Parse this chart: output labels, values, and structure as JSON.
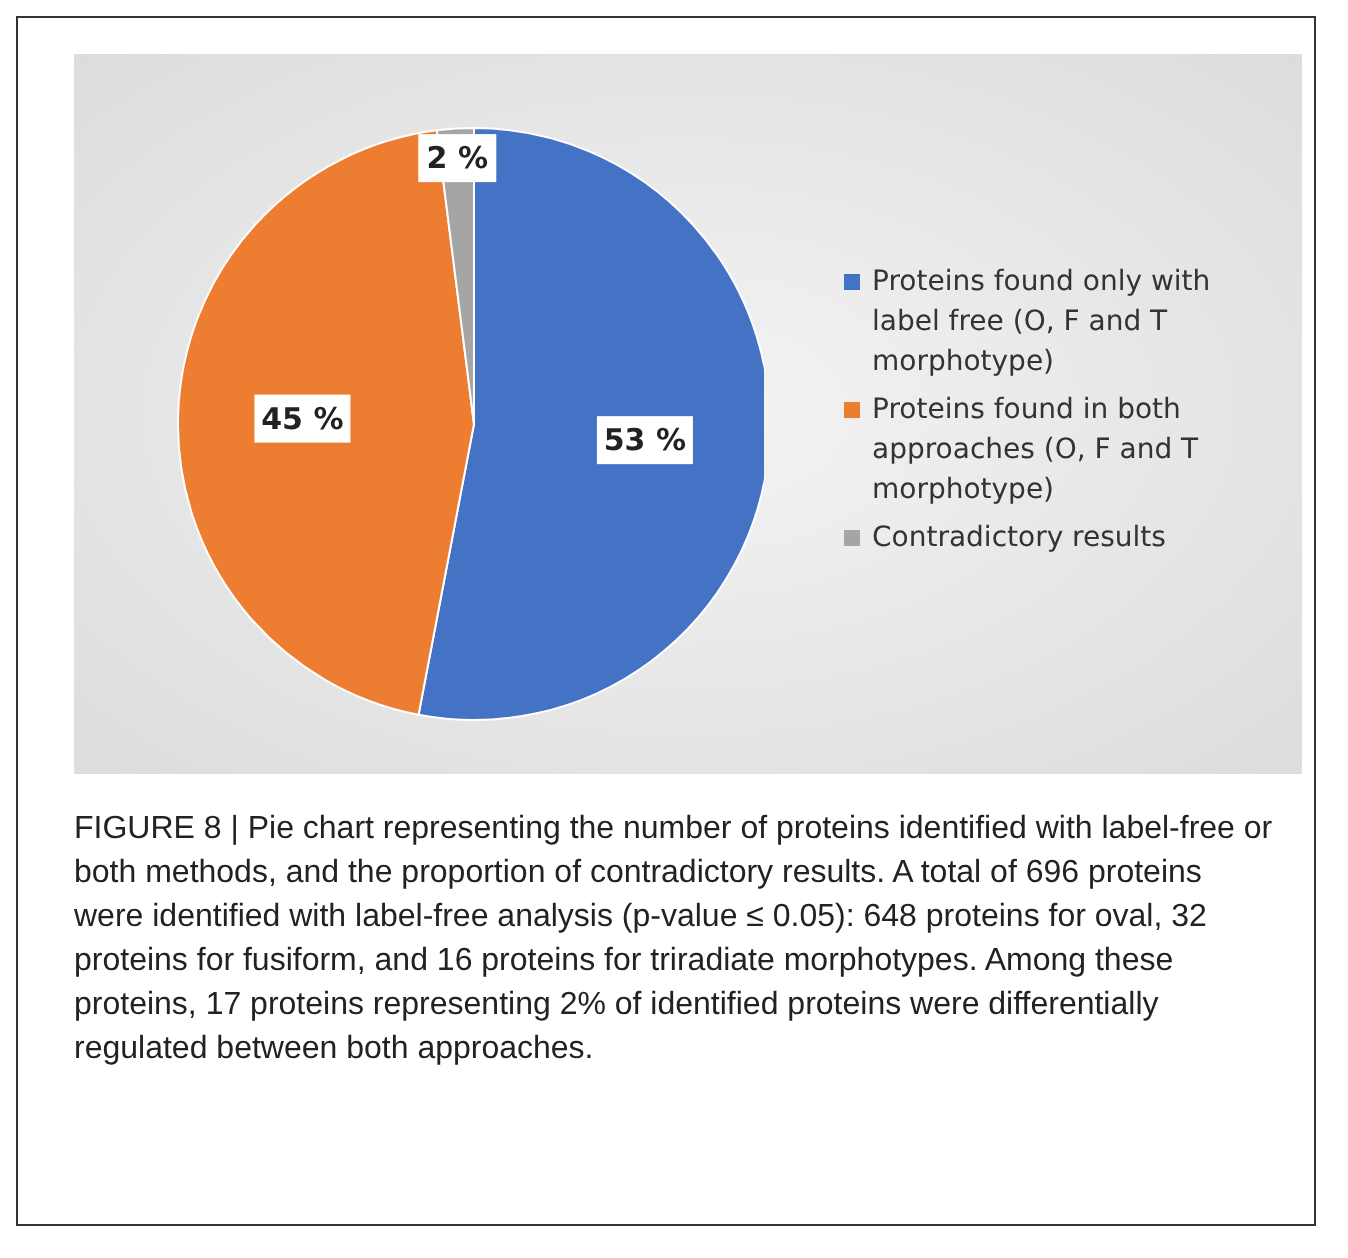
{
  "chart_data": {
    "type": "pie",
    "categories": [
      "Proteins found only with label free (O, F and T morphotype)",
      "Proteins found in both approaches (O, F and T morphotype)",
      "Contradictory results"
    ],
    "values": [
      53,
      45,
      2
    ],
    "colors": [
      "#4472c4",
      "#ed7d31",
      "#a5a5a5"
    ],
    "value_labels": [
      "53 %",
      "45 %",
      "2 %"
    ],
    "legend": "right",
    "annotations": [
      "FIGURE 8 | Pie chart representing the number of proteins identified with label-free or both methods, and the proportion of contradictory results. A total of 696 proteins were identified with label-free analysis (p-value ≤ 0.05): 648 proteins for oval, 32 proteins for fusiform, and 16 proteins for triradiate morphotypes. Among these proteins, 17 proteins representing 2% of identified proteins were differentially regulated between both approaches."
    ]
  }
}
